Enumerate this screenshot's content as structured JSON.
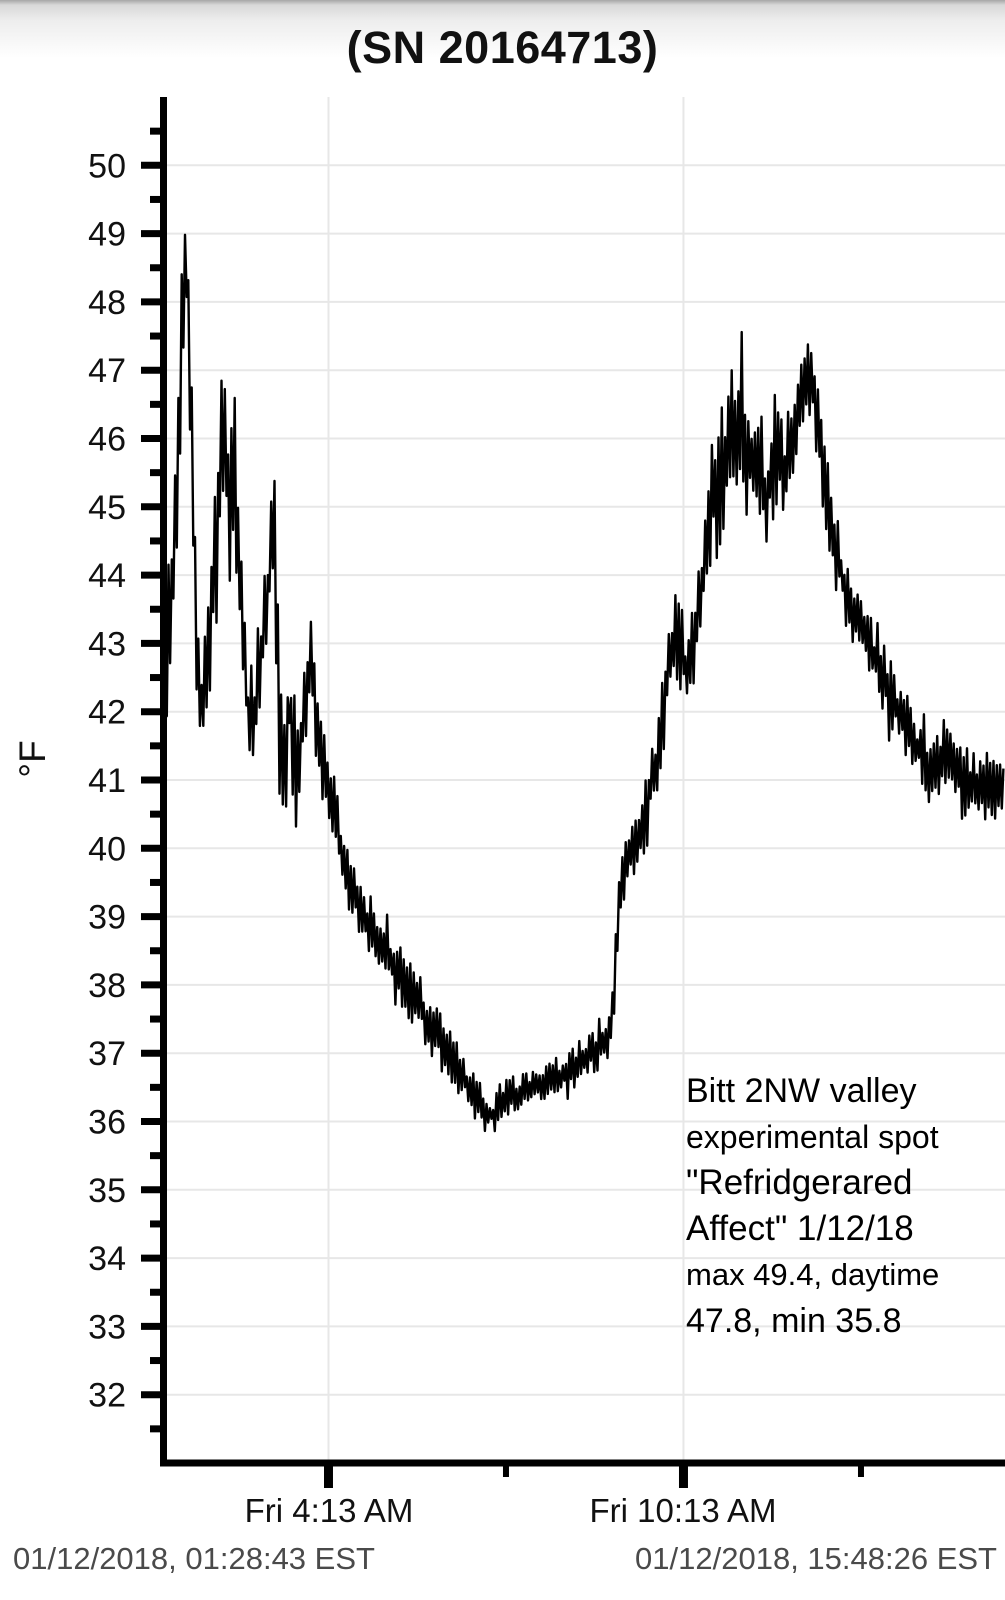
{
  "chart_data": {
    "type": "line",
    "title": "(SN 20164713)",
    "ylabel": "°F",
    "xlabel": "",
    "ylim": [
      31,
      51
    ],
    "y_ticks": {
      "min": 32,
      "max": 50,
      "step": 1,
      "minor_step": 0.5
    },
    "x_hours_range": [
      1.4282,
      15.6509
    ],
    "x_ticks": [
      {
        "hours": 4.2167,
        "label": "Fri 4:13 AM",
        "major": true
      },
      {
        "hours": 7.2167,
        "label": "",
        "major": false
      },
      {
        "hours": 10.2167,
        "label": "Fri 10:13 AM",
        "major": true
      },
      {
        "hours": 13.2167,
        "label": "",
        "major": false
      }
    ],
    "grid": true,
    "grid_color": "#e7e7e7",
    "line_color": "#000000",
    "legend": "none",
    "stats": {
      "max": 49.4,
      "daytime_max": 47.8,
      "min": 35.8
    },
    "series": [
      {
        "name": "temperature_F",
        "noise": "uniform",
        "sample_step_hours": 0.028,
        "trend_points": [
          [
            1.43,
            42.8,
            1.5
          ],
          [
            1.55,
            43.5,
            1.0
          ],
          [
            1.66,
            45.2,
            1.2
          ],
          [
            1.75,
            47.8,
            1.0
          ],
          [
            1.8,
            49.0,
            0.45
          ],
          [
            1.88,
            46.5,
            1.2
          ],
          [
            2.0,
            42.5,
            1.0
          ],
          [
            2.08,
            41.9,
            0.6
          ],
          [
            2.2,
            43.0,
            1.0
          ],
          [
            2.33,
            45.0,
            1.3
          ],
          [
            2.45,
            46.0,
            1.2
          ],
          [
            2.55,
            44.8,
            1.1
          ],
          [
            2.62,
            45.6,
            1.3
          ],
          [
            2.72,
            44.0,
            1.2
          ],
          [
            2.85,
            42.0,
            1.1
          ],
          [
            2.95,
            41.8,
            0.9
          ],
          [
            3.05,
            42.6,
            1.0
          ],
          [
            3.18,
            43.6,
            0.9
          ],
          [
            3.28,
            45.0,
            0.9
          ],
          [
            3.38,
            42.0,
            1.2
          ],
          [
            3.47,
            41.0,
            1.0
          ],
          [
            3.56,
            42.2,
            0.8
          ],
          [
            3.66,
            41.0,
            0.8
          ],
          [
            3.78,
            41.8,
            0.7
          ],
          [
            3.92,
            42.7,
            0.7
          ],
          [
            4.03,
            41.7,
            0.6
          ],
          [
            4.15,
            41.1,
            0.55
          ],
          [
            4.3,
            40.6,
            0.6
          ],
          [
            4.5,
            39.7,
            0.5
          ],
          [
            4.7,
            39.2,
            0.45
          ],
          [
            4.9,
            38.9,
            0.45
          ],
          [
            5.1,
            38.6,
            0.45
          ],
          [
            5.45,
            38.1,
            0.5
          ],
          [
            5.8,
            37.6,
            0.5
          ],
          [
            6.1,
            37.2,
            0.45
          ],
          [
            6.45,
            36.7,
            0.4
          ],
          [
            6.7,
            36.35,
            0.35
          ],
          [
            6.85,
            36.15,
            0.32
          ],
          [
            7.0,
            36.1,
            0.3
          ],
          [
            7.15,
            36.3,
            0.3
          ],
          [
            7.5,
            36.45,
            0.3
          ],
          [
            7.8,
            36.6,
            0.3
          ],
          [
            8.15,
            36.65,
            0.32
          ],
          [
            8.5,
            36.9,
            0.32
          ],
          [
            8.75,
            37.05,
            0.33
          ],
          [
            8.97,
            37.3,
            0.3
          ],
          [
            9.05,
            38.0,
            0.45
          ],
          [
            9.15,
            39.4,
            0.4
          ],
          [
            9.28,
            39.85,
            0.45
          ],
          [
            9.45,
            40.2,
            0.5
          ],
          [
            9.65,
            40.8,
            0.5
          ],
          [
            9.8,
            41.4,
            0.55
          ],
          [
            9.93,
            42.4,
            0.7
          ],
          [
            10.05,
            43.1,
            0.65
          ],
          [
            10.2,
            42.9,
            0.7
          ],
          [
            10.3,
            42.4,
            0.7
          ],
          [
            10.45,
            43.3,
            0.7
          ],
          [
            10.6,
            44.5,
            0.8
          ],
          [
            10.75,
            45.2,
            1.0
          ],
          [
            10.9,
            45.5,
            1.1
          ],
          [
            11.05,
            46.0,
            1.2
          ],
          [
            11.2,
            46.4,
            1.3
          ],
          [
            11.33,
            45.7,
            1.0
          ],
          [
            11.47,
            45.9,
            0.9
          ],
          [
            11.62,
            45.0,
            0.9
          ],
          [
            11.78,
            46.0,
            1.0
          ],
          [
            11.93,
            45.4,
            0.8
          ],
          [
            12.1,
            46.0,
            0.8
          ],
          [
            12.28,
            46.9,
            0.55
          ],
          [
            12.42,
            46.7,
            0.6
          ],
          [
            12.57,
            45.7,
            0.9
          ],
          [
            12.72,
            44.8,
            0.7
          ],
          [
            12.92,
            43.9,
            0.65
          ],
          [
            13.15,
            43.4,
            0.6
          ],
          [
            13.4,
            42.9,
            0.6
          ],
          [
            13.65,
            42.4,
            0.6
          ],
          [
            13.9,
            41.9,
            0.55
          ],
          [
            14.15,
            41.5,
            0.55
          ],
          [
            14.4,
            41.2,
            0.6
          ],
          [
            14.65,
            41.4,
            0.55
          ],
          [
            14.9,
            41.0,
            0.6
          ],
          [
            15.15,
            40.9,
            0.55
          ],
          [
            15.4,
            40.9,
            0.5
          ],
          [
            15.66,
            41.0,
            0.55
          ]
        ]
      }
    ]
  },
  "annotation": {
    "lines": [
      "Bitt 2NW valley",
      "experimental spot",
      "\"Refridgerared",
      "Affect\" 1/12/18",
      "max 49.4, daytime",
      "47.8, min 35.8"
    ]
  },
  "footer": {
    "left": "01/12/2018, 01:28:43 EST",
    "right": "01/12/2018, 15:48:26 EST"
  }
}
